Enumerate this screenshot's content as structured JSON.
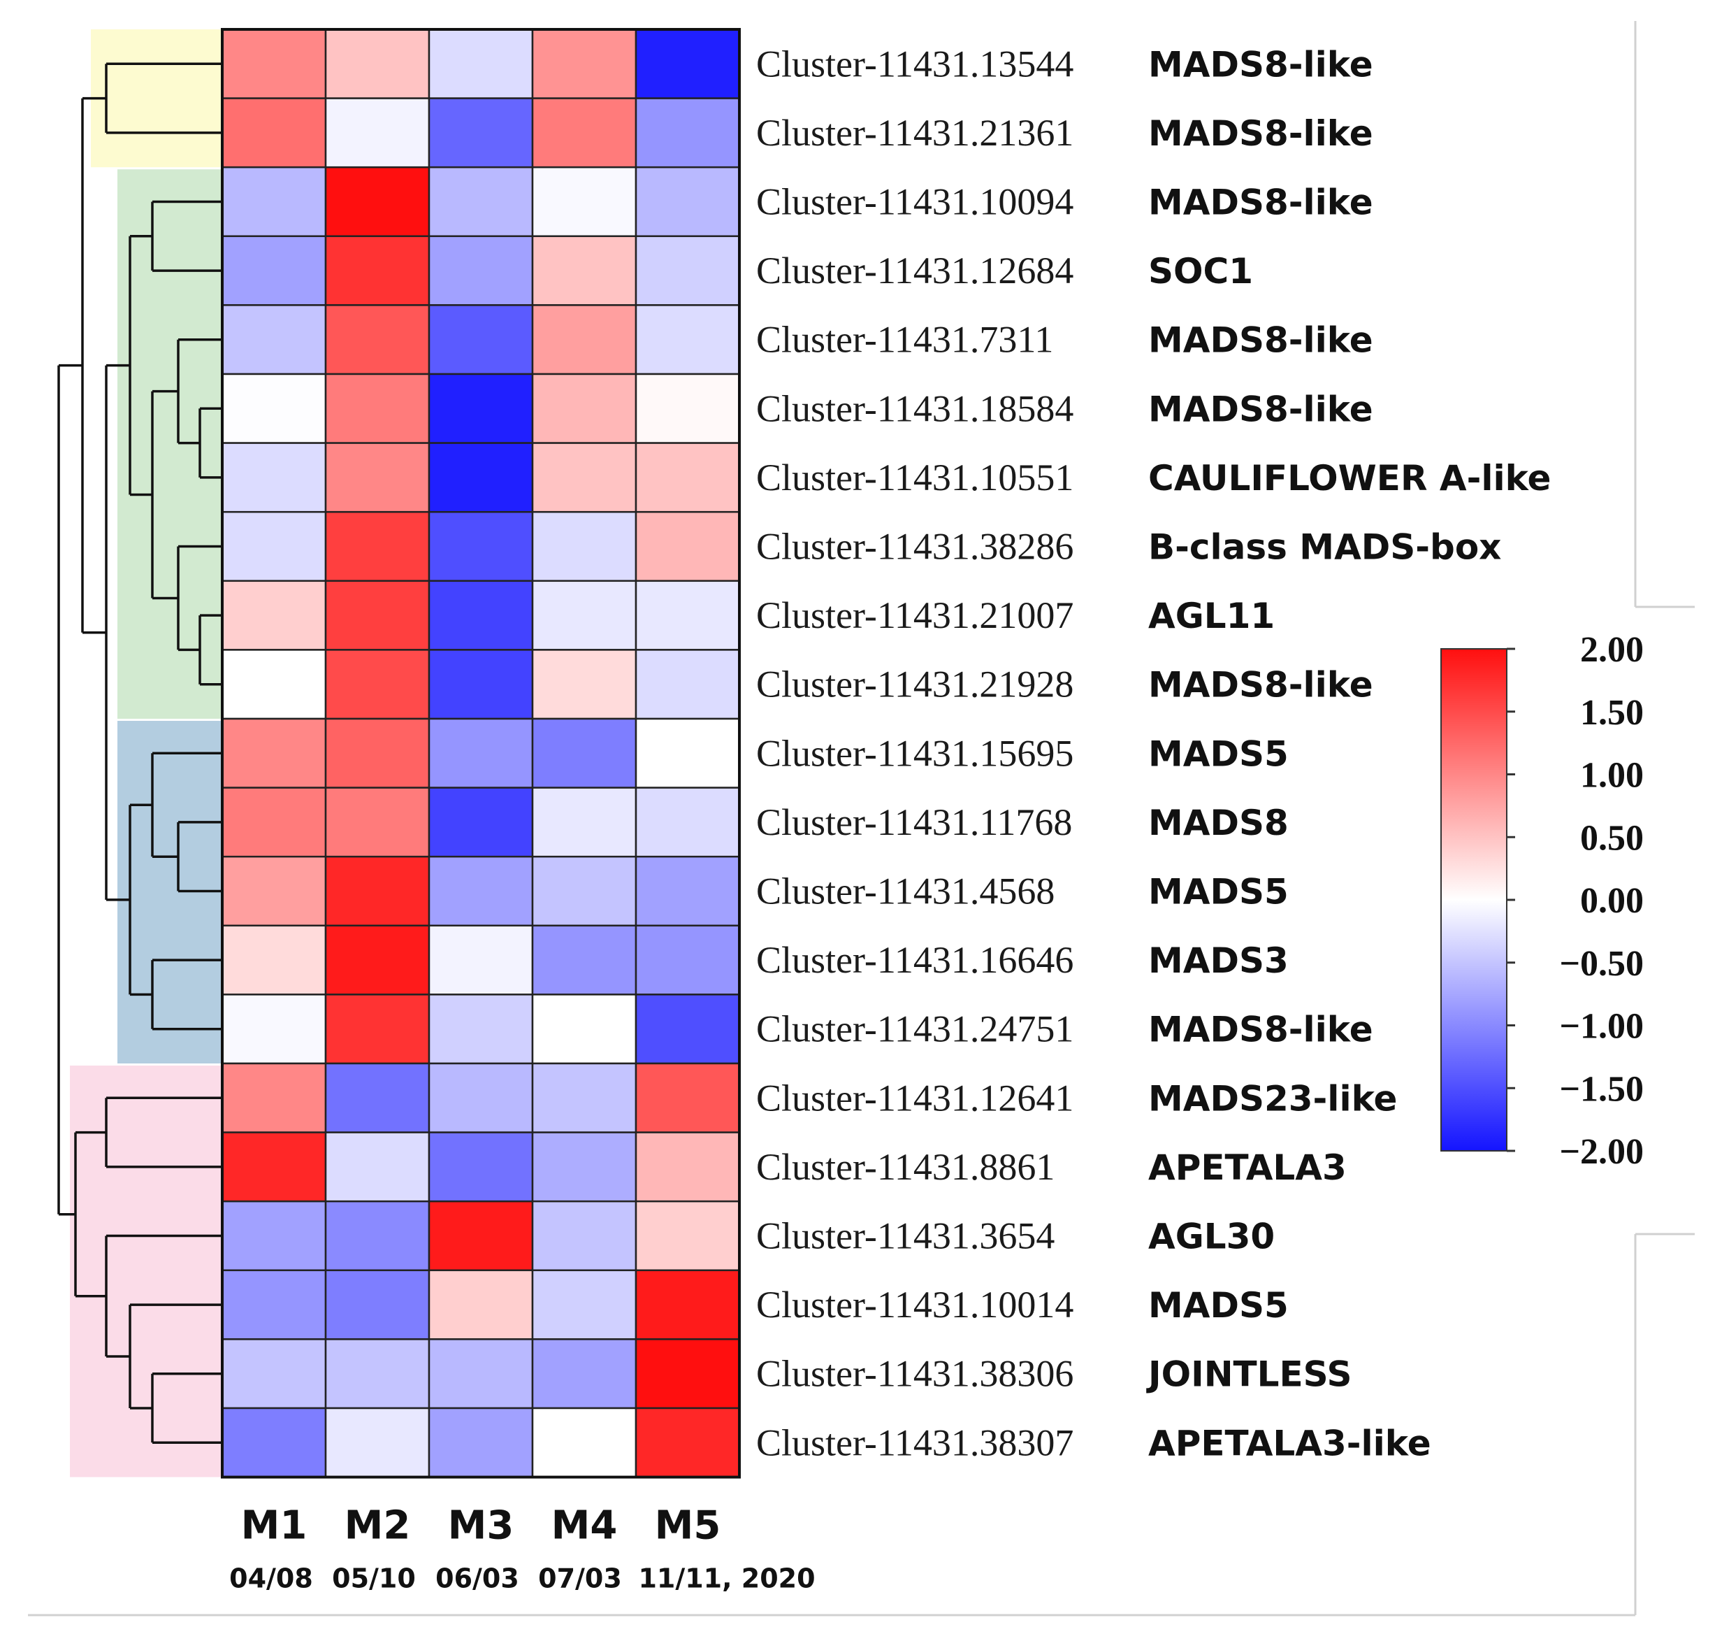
{
  "chart_data": {
    "type": "heatmap",
    "title": "",
    "columns": [
      "M1",
      "M2",
      "M3",
      "M4",
      "M5"
    ],
    "column_dates": [
      "04/08",
      "05/10",
      "06/03",
      "07/03",
      "11/11, 2020"
    ],
    "rows": [
      {
        "cluster": "Cluster-11431.13544",
        "gene": "MADS8-like"
      },
      {
        "cluster": "Cluster-11431.21361",
        "gene": "MADS8-like"
      },
      {
        "cluster": "Cluster-11431.10094",
        "gene": "MADS8-like"
      },
      {
        "cluster": "Cluster-11431.12684",
        "gene": "SOC1"
      },
      {
        "cluster": "Cluster-11431.7311",
        "gene": "MADS8-like"
      },
      {
        "cluster": "Cluster-11431.18584",
        "gene": "MADS8-like"
      },
      {
        "cluster": "Cluster-11431.10551",
        "gene": "CAULIFLOWER A-like"
      },
      {
        "cluster": "Cluster-11431.38286",
        "gene": "B-class MADS-box"
      },
      {
        "cluster": "Cluster-11431.21007",
        "gene": "AGL11"
      },
      {
        "cluster": "Cluster-11431.21928",
        "gene": "MADS8-like"
      },
      {
        "cluster": "Cluster-11431.15695",
        "gene": "MADS5"
      },
      {
        "cluster": "Cluster-11431.11768",
        "gene": "MADS8"
      },
      {
        "cluster": "Cluster-11431.4568",
        "gene": "MADS5"
      },
      {
        "cluster": "Cluster-11431.16646",
        "gene": "MADS3"
      },
      {
        "cluster": "Cluster-11431.24751",
        "gene": "MADS8-like"
      },
      {
        "cluster": "Cluster-11431.12641",
        "gene": "MADS23-like"
      },
      {
        "cluster": "Cluster-11431.8861",
        "gene": "APETALA3"
      },
      {
        "cluster": "Cluster-11431.3654",
        "gene": "AGL30"
      },
      {
        "cluster": "Cluster-11431.10014",
        "gene": "MADS5"
      },
      {
        "cluster": "Cluster-11431.38306",
        "gene": "JOINTLESS"
      },
      {
        "cluster": "Cluster-11431.38307",
        "gene": "APETALA3-like"
      }
    ],
    "values": [
      [
        1.0,
        0.5,
        -0.3,
        0.9,
        -1.9
      ],
      [
        1.2,
        -0.1,
        -1.3,
        1.1,
        -0.9
      ],
      [
        -0.6,
        2.0,
        -0.6,
        -0.05,
        -0.6
      ],
      [
        -0.8,
        1.7,
        -0.8,
        0.5,
        -0.4
      ],
      [
        -0.5,
        1.4,
        -1.4,
        0.8,
        -0.3
      ],
      [
        -0.02,
        1.1,
        -1.9,
        0.6,
        0.05
      ],
      [
        -0.3,
        1.0,
        -1.9,
        0.5,
        0.5
      ],
      [
        -0.3,
        1.6,
        -1.5,
        -0.3,
        0.6
      ],
      [
        0.4,
        1.6,
        -1.6,
        -0.2,
        -0.2
      ],
      [
        0.0,
        1.5,
        -1.6,
        0.3,
        -0.3
      ],
      [
        1.0,
        1.3,
        -0.9,
        -1.1,
        0.0
      ],
      [
        1.1,
        1.1,
        -1.6,
        -0.2,
        -0.3
      ],
      [
        0.8,
        1.8,
        -0.8,
        -0.5,
        -0.8
      ],
      [
        0.3,
        1.9,
        -0.1,
        -0.9,
        -0.9
      ],
      [
        -0.05,
        1.7,
        -0.4,
        0.0,
        -1.5
      ],
      [
        1.0,
        -1.2,
        -0.6,
        -0.5,
        1.4
      ],
      [
        1.8,
        -0.3,
        -1.2,
        -0.7,
        0.6
      ],
      [
        -0.8,
        -1.0,
        1.9,
        -0.5,
        0.4
      ],
      [
        -0.9,
        -1.1,
        0.4,
        -0.4,
        1.9
      ],
      [
        -0.5,
        -0.5,
        -0.6,
        -0.8,
        2.0
      ],
      [
        -1.1,
        -0.2,
        -0.8,
        0.0,
        1.8
      ]
    ],
    "color_scale": {
      "min": -2.0,
      "max": 2.0,
      "low_color": "#1414ff",
      "mid_color": "#ffffff",
      "high_color": "#ff0f0f",
      "ticks": [
        "2.00",
        "1.50",
        "1.00",
        "0.50",
        "0.00",
        "−0.50",
        "−1.00",
        "−1.50",
        "−2.00"
      ]
    },
    "row_groups": [
      {
        "name": "yellow",
        "rows": [
          0,
          1
        ],
        "color": "#fdfbd0"
      },
      {
        "name": "green",
        "rows": [
          2,
          9
        ],
        "color": "#d2ead0"
      },
      {
        "name": "blue",
        "rows": [
          10,
          14
        ],
        "color": "#b3cde0"
      },
      {
        "name": "pink",
        "rows": [
          15,
          20
        ],
        "color": "#fbdce8"
      }
    ]
  }
}
